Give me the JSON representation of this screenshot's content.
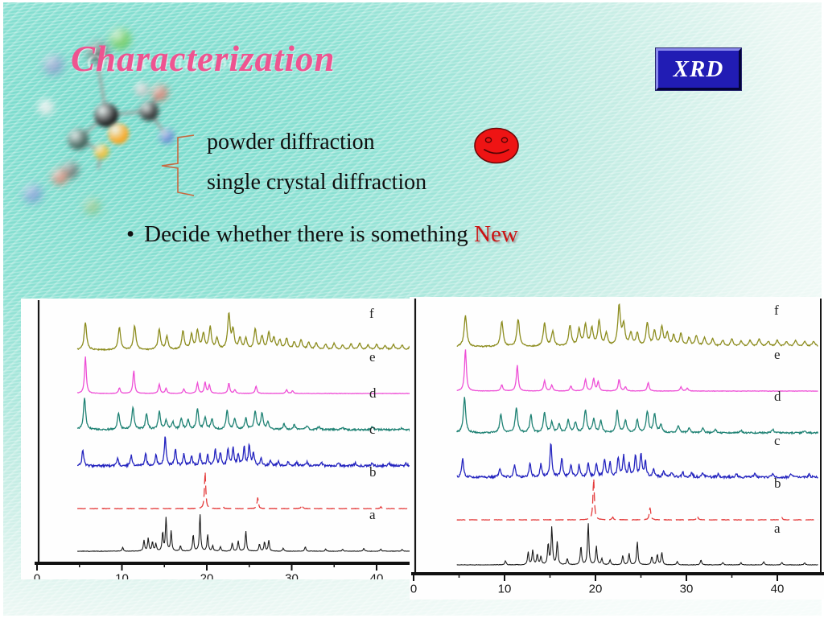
{
  "slide": {
    "title": "Characterization",
    "badge_label": "XRD",
    "items": [
      "powder diffraction",
      "single crystal diffraction"
    ],
    "bullet_char": "•",
    "bullet_prefix": "Decide whether there is something ",
    "bullet_highlight": "New",
    "colors": {
      "title": "#ee5490",
      "badge_bg": "#211cb4",
      "badge_text": "#ffffff",
      "highlight": "#cc1212",
      "brace": "#c8683f",
      "smiley": "#ee1414",
      "background_teal": "#72d9ca"
    }
  },
  "chart_data": {
    "type": "line",
    "title": "",
    "xlabel": "",
    "ylabel": "",
    "xlim": [
      0,
      45
    ],
    "xticks": [
      0,
      10,
      20,
      30,
      40
    ],
    "minor_ticks": [
      5,
      15,
      25,
      35,
      45
    ],
    "grid": false,
    "legend_position": "right-inside",
    "panels": [
      "left",
      "right"
    ],
    "panel_note": "same six stacked XRD patterns shown in both panels",
    "series": [
      {
        "name": "f",
        "color": "#8c8c1e",
        "w": 0.17,
        "noise": 0.7,
        "dashed": false,
        "peaks": [
          [
            5.7,
            0.75
          ],
          [
            9.7,
            0.6
          ],
          [
            11.5,
            0.65
          ],
          [
            14.4,
            0.55
          ],
          [
            15.3,
            0.35
          ],
          [
            17.2,
            0.5
          ],
          [
            18.2,
            0.4
          ],
          [
            18.9,
            0.5
          ],
          [
            19.6,
            0.42
          ],
          [
            20.4,
            0.6
          ],
          [
            21.2,
            0.3
          ],
          [
            22.6,
            0.95
          ],
          [
            23.1,
            0.5
          ],
          [
            23.9,
            0.3
          ],
          [
            24.6,
            0.3
          ],
          [
            25.7,
            0.55
          ],
          [
            26.5,
            0.35
          ],
          [
            27.3,
            0.45
          ],
          [
            27.9,
            0.3
          ],
          [
            28.6,
            0.25
          ],
          [
            29.4,
            0.3
          ],
          [
            30.3,
            0.2
          ],
          [
            31.1,
            0.25
          ],
          [
            32.0,
            0.2
          ],
          [
            32.9,
            0.18
          ],
          [
            34.0,
            0.14
          ],
          [
            35.0,
            0.17
          ],
          [
            36.0,
            0.13
          ],
          [
            37.0,
            0.15
          ],
          [
            38.0,
            0.18
          ],
          [
            39.0,
            0.12
          ],
          [
            40.0,
            0.15
          ],
          [
            41.0,
            0.12
          ],
          [
            42.0,
            0.14
          ],
          [
            43.0,
            0.12
          ],
          [
            44.0,
            0.13
          ],
          [
            45.0,
            0.12
          ]
        ]
      },
      {
        "name": "e",
        "color": "#ee4fd6",
        "w": 0.12,
        "noise": 0.25,
        "dashed": false,
        "peaks": [
          [
            5.7,
            1.0
          ],
          [
            9.7,
            0.15
          ],
          [
            11.4,
            0.62
          ],
          [
            14.4,
            0.25
          ],
          [
            15.2,
            0.14
          ],
          [
            17.3,
            0.12
          ],
          [
            18.9,
            0.28
          ],
          [
            19.8,
            0.3
          ],
          [
            20.3,
            0.22
          ],
          [
            22.6,
            0.28
          ],
          [
            23.3,
            0.1
          ],
          [
            25.8,
            0.2
          ],
          [
            29.4,
            0.1
          ],
          [
            30.1,
            0.07
          ]
        ]
      },
      {
        "name": "d",
        "color": "#1f8274",
        "w": 0.15,
        "noise": 1.0,
        "dashed": false,
        "peaks": [
          [
            5.6,
            0.85
          ],
          [
            9.6,
            0.45
          ],
          [
            11.3,
            0.6
          ],
          [
            12.9,
            0.42
          ],
          [
            14.4,
            0.48
          ],
          [
            15.2,
            0.25
          ],
          [
            16.0,
            0.2
          ],
          [
            17.0,
            0.3
          ],
          [
            17.8,
            0.25
          ],
          [
            18.9,
            0.55
          ],
          [
            19.8,
            0.32
          ],
          [
            20.6,
            0.28
          ],
          [
            22.4,
            0.52
          ],
          [
            23.3,
            0.3
          ],
          [
            24.6,
            0.3
          ],
          [
            25.7,
            0.5
          ],
          [
            26.5,
            0.45
          ],
          [
            27.2,
            0.2
          ],
          [
            29.1,
            0.15
          ],
          [
            30.3,
            0.12
          ],
          [
            31.8,
            0.1
          ],
          [
            33.2,
            0.08
          ],
          [
            36.0,
            0.06
          ],
          [
            39.5,
            0.08
          ],
          [
            43.0,
            0.05
          ]
        ]
      },
      {
        "name": "c",
        "color": "#2424bf",
        "w": 0.12,
        "noise": 1.4,
        "dashed": false,
        "peaks": [
          [
            5.4,
            0.45
          ],
          [
            9.5,
            0.2
          ],
          [
            11.1,
            0.28
          ],
          [
            12.8,
            0.32
          ],
          [
            14.0,
            0.3
          ],
          [
            15.1,
            0.8
          ],
          [
            16.3,
            0.45
          ],
          [
            17.3,
            0.3
          ],
          [
            18.2,
            0.28
          ],
          [
            19.2,
            0.33
          ],
          [
            20.1,
            0.3
          ],
          [
            21.0,
            0.42
          ],
          [
            21.6,
            0.35
          ],
          [
            22.5,
            0.45
          ],
          [
            23.1,
            0.5
          ],
          [
            23.7,
            0.3
          ],
          [
            24.4,
            0.5
          ],
          [
            25.0,
            0.55
          ],
          [
            25.5,
            0.35
          ],
          [
            26.4,
            0.2
          ],
          [
            27.5,
            0.15
          ],
          [
            28.4,
            0.12
          ],
          [
            29.6,
            0.12
          ],
          [
            30.6,
            0.1
          ],
          [
            31.8,
            0.1
          ],
          [
            33.5,
            0.08
          ],
          [
            35.5,
            0.07
          ],
          [
            37.5,
            0.08
          ],
          [
            39.5,
            0.07
          ],
          [
            41.5,
            0.07
          ],
          [
            43.5,
            0.07
          ]
        ]
      },
      {
        "name": "b",
        "color": "#e43b3b",
        "w": 0.09,
        "noise": 0.25,
        "dashed": true,
        "peaks": [
          [
            19.8,
            1.0
          ],
          [
            21.9,
            0.06
          ],
          [
            26.0,
            0.3
          ],
          [
            31.2,
            0.1
          ],
          [
            40.5,
            0.05
          ]
        ]
      },
      {
        "name": "a",
        "color": "#1c1c1c",
        "w": 0.085,
        "noise": 0.3,
        "dashed": false,
        "peaks": [
          [
            10.1,
            0.1
          ],
          [
            12.6,
            0.3
          ],
          [
            13.1,
            0.35
          ],
          [
            13.6,
            0.25
          ],
          [
            14.0,
            0.2
          ],
          [
            14.8,
            0.5
          ],
          [
            15.2,
            0.9
          ],
          [
            15.8,
            0.55
          ],
          [
            16.9,
            0.15
          ],
          [
            18.4,
            0.45
          ],
          [
            19.2,
            1.0
          ],
          [
            20.1,
            0.45
          ],
          [
            20.7,
            0.15
          ],
          [
            21.6,
            0.12
          ],
          [
            23.0,
            0.22
          ],
          [
            23.7,
            0.28
          ],
          [
            24.6,
            0.55
          ],
          [
            26.2,
            0.2
          ],
          [
            26.8,
            0.25
          ],
          [
            27.3,
            0.3
          ],
          [
            29.0,
            0.08
          ],
          [
            31.6,
            0.12
          ],
          [
            34.0,
            0.06
          ],
          [
            36.0,
            0.05
          ],
          [
            38.5,
            0.08
          ],
          [
            40.5,
            0.06
          ],
          [
            43.0,
            0.05
          ]
        ]
      }
    ]
  }
}
